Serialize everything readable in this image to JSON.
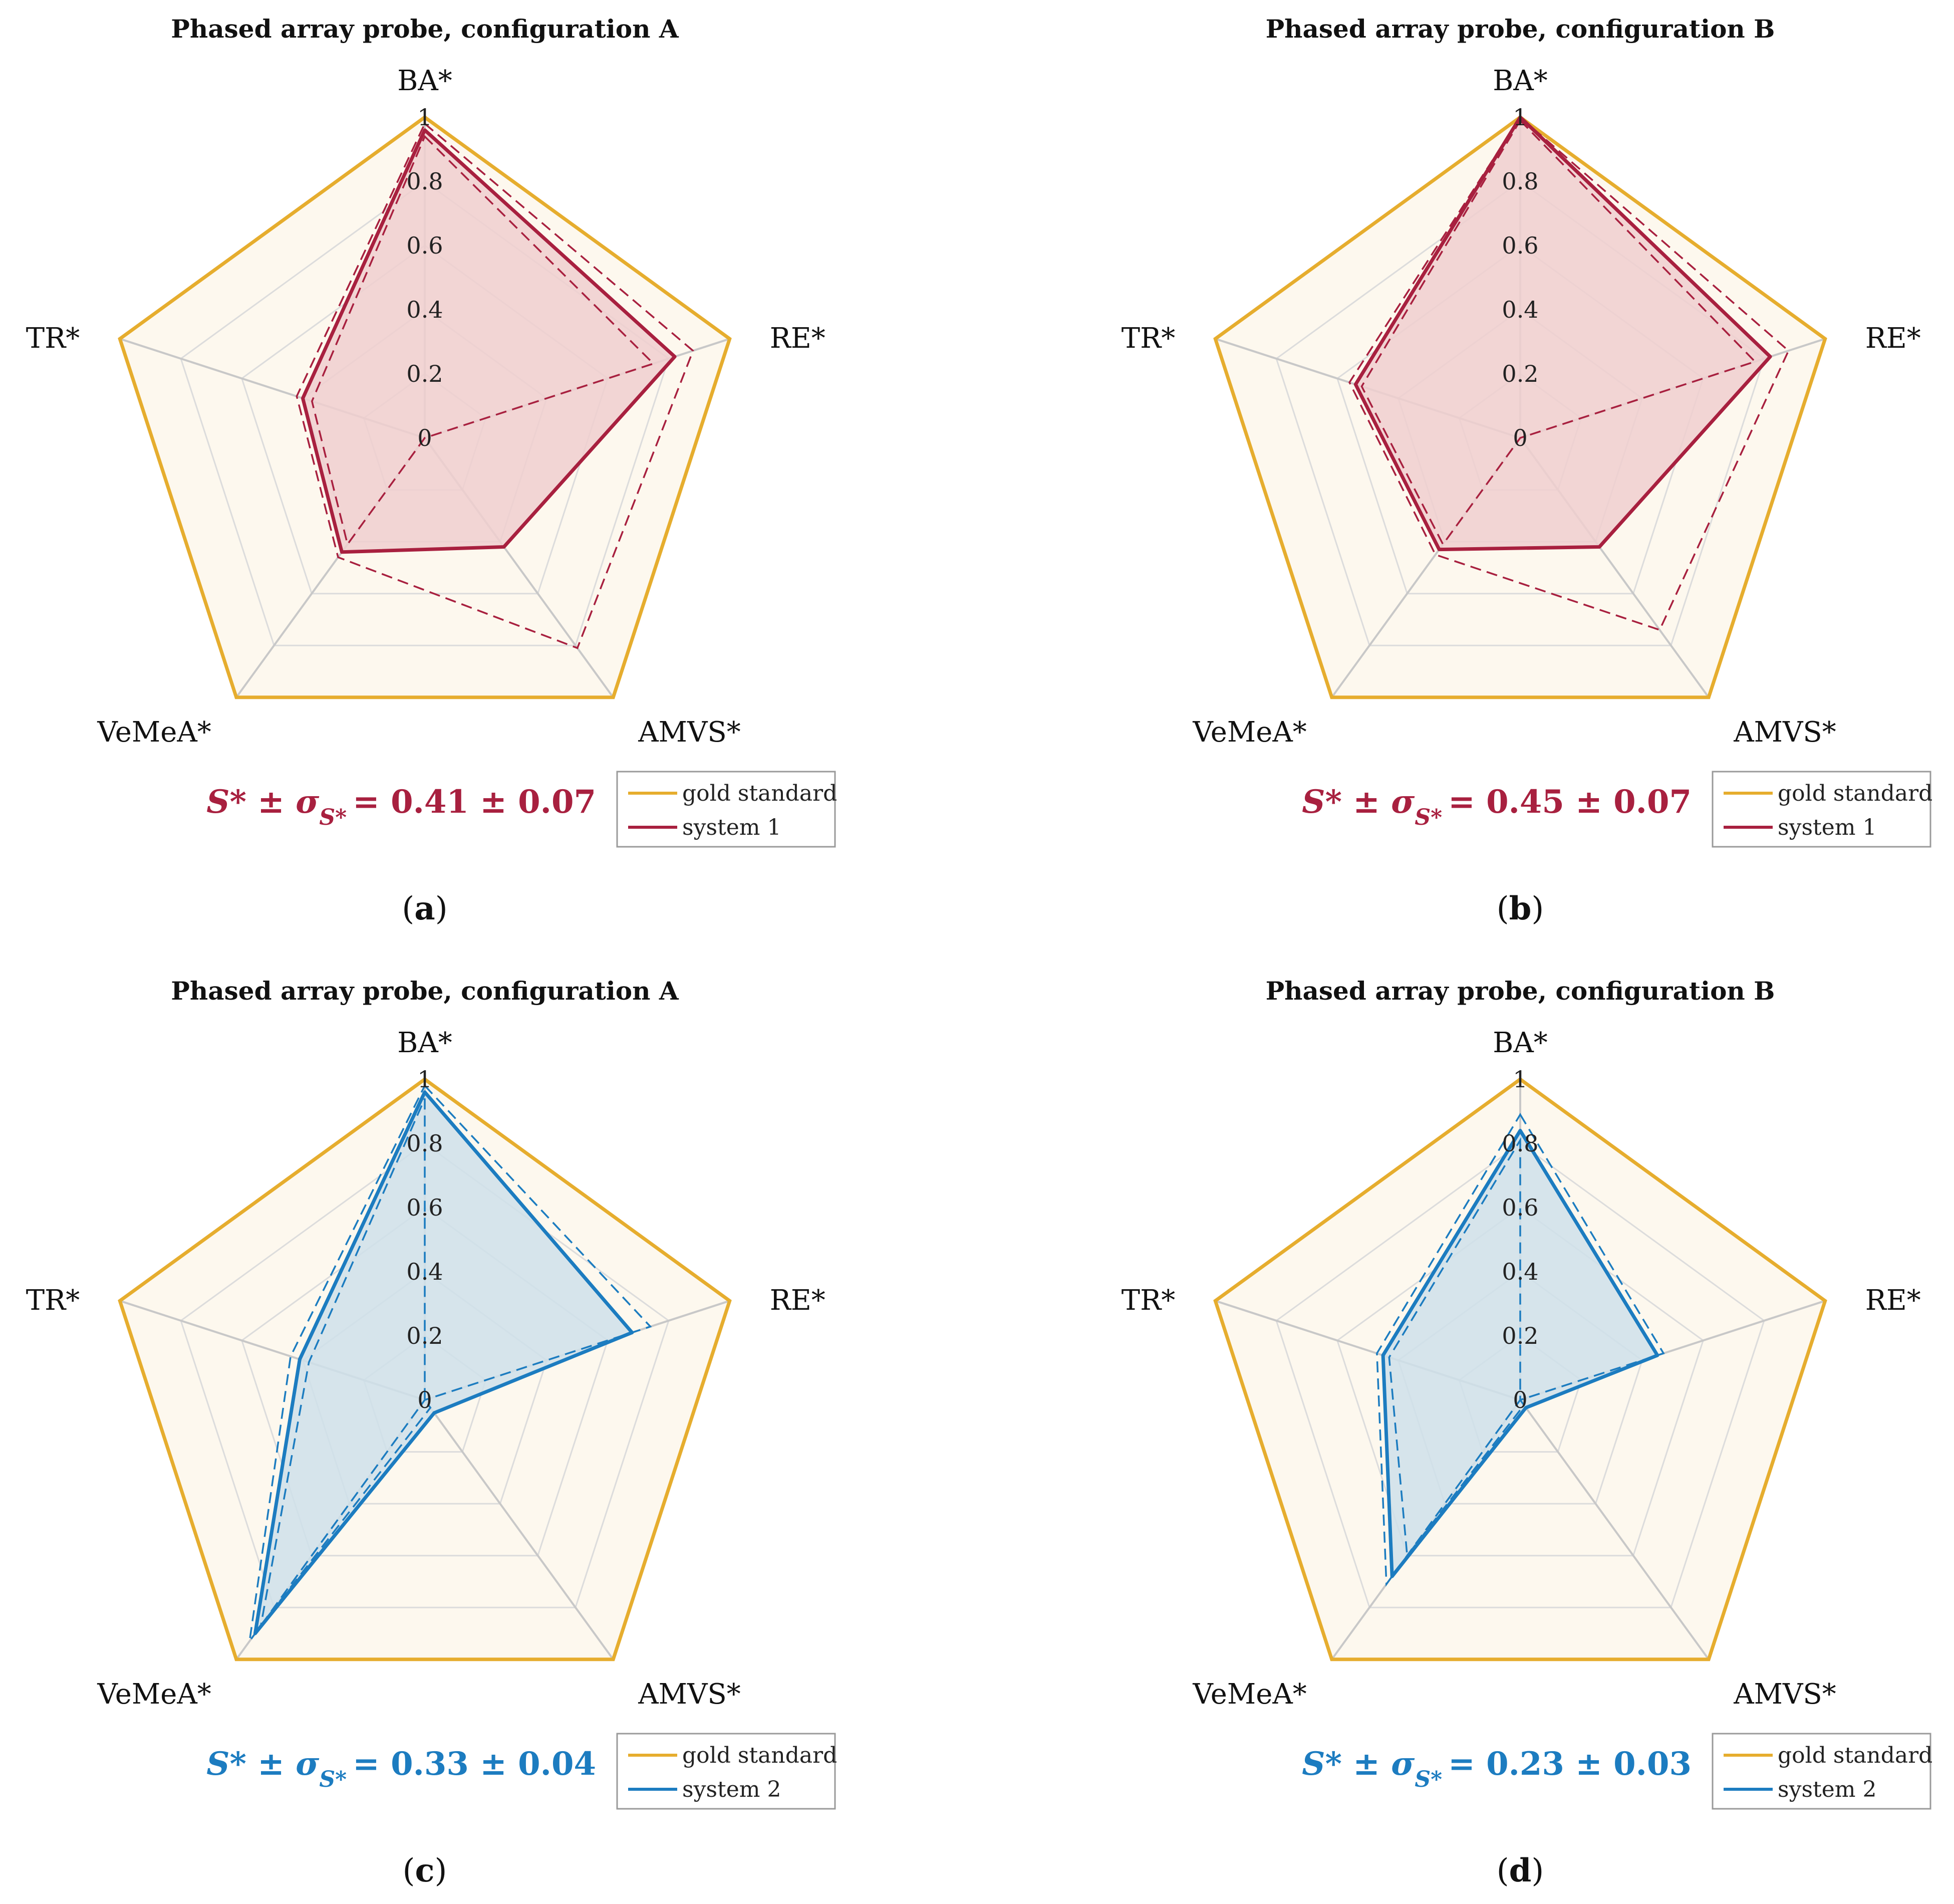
{
  "colors": {
    "gold": "#e6ad2e",
    "gold_fill": "#fdf8ee",
    "grid": "#dcdcdc",
    "spoke": "#c8c8c8",
    "red": "#a8203f",
    "red_fill": "#f0cfcf",
    "blue": "#1c7cc0",
    "blue_fill": "#cfe1ea"
  },
  "chart_data": [
    {
      "type": "radar",
      "panel": "a",
      "title": "Phased array probe, configuration A",
      "axes": [
        "BA*",
        "RE*",
        "AMVS*",
        "VeMeA*",
        "TR*"
      ],
      "ticks": [
        "0",
        "0.2",
        "0.4",
        "0.6",
        "0.8",
        "1"
      ],
      "rlim": [
        0,
        1
      ],
      "color_key": "red",
      "series": [
        {
          "name": "gold standard",
          "values": [
            1,
            1,
            1,
            1,
            1
          ],
          "style": "gold"
        },
        {
          "name": "system 1",
          "values": [
            0.96,
            0.82,
            0.42,
            0.44,
            0.4
          ],
          "style": "mean"
        },
        {
          "values": [
            0.98,
            0.88,
            0.81,
            0.46,
            0.42
          ],
          "style": "upper"
        },
        {
          "values": [
            0.94,
            0.75,
            0.0,
            0.41,
            0.37
          ],
          "style": "lower"
        }
      ],
      "score": {
        "prefix": "S* ± σ",
        "sub": "S*",
        "value": "= 0.41 ± 0.07"
      },
      "legend": [
        "gold standard",
        "system 1"
      ],
      "label": "a"
    },
    {
      "type": "radar",
      "panel": "b",
      "title": "Phased array probe, configuration B",
      "axes": [
        "BA*",
        "RE*",
        "AMVS*",
        "VeMeA*",
        "TR*"
      ],
      "ticks": [
        "0",
        "0.2",
        "0.4",
        "0.6",
        "0.8",
        "1"
      ],
      "rlim": [
        0,
        1
      ],
      "color_key": "red",
      "series": [
        {
          "name": "gold standard",
          "values": [
            1,
            1,
            1,
            1,
            1
          ],
          "style": "gold"
        },
        {
          "name": "system 1",
          "values": [
            1.0,
            0.82,
            0.42,
            0.43,
            0.54
          ],
          "style": "mean"
        },
        {
          "values": [
            1.0,
            0.88,
            0.74,
            0.45,
            0.56
          ],
          "style": "upper"
        },
        {
          "values": [
            0.99,
            0.77,
            0.0,
            0.41,
            0.52
          ],
          "style": "lower"
        }
      ],
      "score": {
        "prefix": "S* ± σ",
        "sub": "S*",
        "value": "= 0.45 ± 0.07"
      },
      "legend": [
        "gold standard",
        "system 1"
      ],
      "label": "b"
    },
    {
      "type": "radar",
      "panel": "c",
      "title": "Phased array probe, configuration A",
      "axes": [
        "BA*",
        "RE*",
        "AMVS*",
        "VeMeA*",
        "TR*"
      ],
      "ticks": [
        "0",
        "0.2",
        "0.4",
        "0.6",
        "0.8",
        "1"
      ],
      "rlim": [
        0,
        1
      ],
      "color_key": "blue",
      "series": [
        {
          "name": "gold standard",
          "values": [
            1,
            1,
            1,
            1,
            1
          ],
          "style": "gold"
        },
        {
          "name": "system 2",
          "values": [
            0.96,
            0.68,
            0.05,
            0.9,
            0.41
          ],
          "style": "mean"
        },
        {
          "values": [
            0.98,
            0.74,
            0.0,
            0.93,
            0.44
          ],
          "style": "upper"
        },
        {
          "values": [
            0.94,
            0.0,
            0.03,
            0.87,
            0.38
          ],
          "style": "lower"
        }
      ],
      "score": {
        "prefix": "S* ± σ",
        "sub": "S*",
        "value": "= 0.33 ± 0.04"
      },
      "legend": [
        "gold standard",
        "system 2"
      ],
      "label": "c"
    },
    {
      "type": "radar",
      "panel": "d",
      "title": "Phased array probe, configuration B",
      "axes": [
        "BA*",
        "RE*",
        "AMVS*",
        "VeMeA*",
        "TR*"
      ],
      "ticks": [
        "0",
        "0.2",
        "0.4",
        "0.6",
        "0.8",
        "1"
      ],
      "rlim": [
        0,
        1
      ],
      "color_key": "blue",
      "series": [
        {
          "name": "gold standard",
          "values": [
            1,
            1,
            1,
            1,
            1
          ],
          "style": "gold"
        },
        {
          "name": "system 2",
          "values": [
            0.84,
            0.45,
            0.03,
            0.68,
            0.45
          ],
          "style": "mean"
        },
        {
          "values": [
            0.89,
            0.47,
            0.0,
            0.71,
            0.47
          ],
          "style": "upper"
        },
        {
          "values": [
            0.81,
            0.0,
            0.02,
            0.6,
            0.43
          ],
          "style": "lower"
        }
      ],
      "score": {
        "prefix": "S* ± σ",
        "sub": "S*",
        "value": "= 0.23 ± 0.03"
      },
      "legend": [
        "gold standard",
        "system 2"
      ],
      "label": "d"
    }
  ]
}
